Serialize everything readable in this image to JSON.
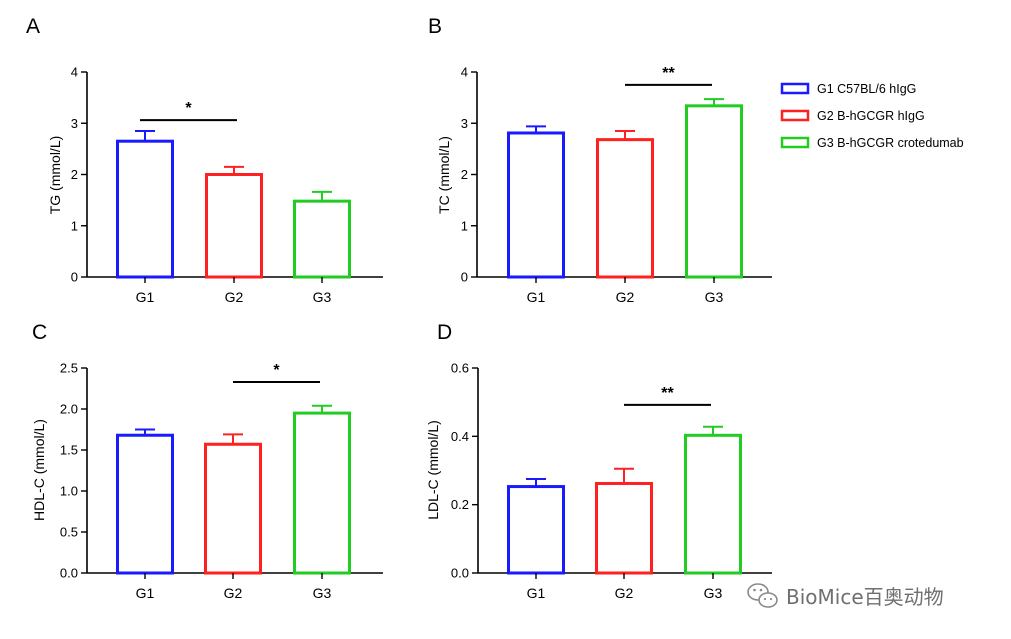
{
  "chart_data": [
    {
      "type": "bar",
      "panel": "A",
      "categories": [
        "G1",
        "G2",
        "G3"
      ],
      "values": [
        2.65,
        2.0,
        1.48
      ],
      "errors": [
        0.2,
        0.15,
        0.18
      ],
      "ylabel": "TG (mmol/L)",
      "ylim": [
        0,
        4
      ],
      "yticks": [
        "0",
        "1",
        "2",
        "3",
        "4"
      ],
      "significance": [
        {
          "from": 0,
          "to": 1,
          "label": "*",
          "at": 3.06
        }
      ]
    },
    {
      "type": "bar",
      "panel": "B",
      "categories": [
        "G1",
        "G2",
        "G3"
      ],
      "values": [
        2.81,
        2.68,
        3.34
      ],
      "errors": [
        0.13,
        0.17,
        0.13
      ],
      "ylabel": "TC (mmol/L)",
      "ylim": [
        0,
        4
      ],
      "yticks": [
        "0",
        "1",
        "2",
        "3",
        "4"
      ],
      "significance": [
        {
          "from": 1,
          "to": 2,
          "label": "**",
          "at": 3.75
        }
      ]
    },
    {
      "type": "bar",
      "panel": "C",
      "categories": [
        "G1",
        "G2",
        "G3"
      ],
      "values": [
        1.68,
        1.57,
        1.95
      ],
      "errors": [
        0.07,
        0.12,
        0.09
      ],
      "ylabel": "HDL-C (mmol/L)",
      "ylim": [
        0,
        2.5
      ],
      "yticks": [
        "0.0",
        "0.5",
        "1.0",
        "1.5",
        "2.0",
        "2.5"
      ],
      "significance": [
        {
          "from": 1,
          "to": 2,
          "label": "*",
          "at": 2.33
        }
      ]
    },
    {
      "type": "bar",
      "panel": "D",
      "categories": [
        "G1",
        "G2",
        "G3"
      ],
      "values": [
        0.253,
        0.262,
        0.403
      ],
      "errors": [
        0.022,
        0.043,
        0.025
      ],
      "ylabel": "LDL-C (mmol/L)",
      "ylim": [
        0,
        0.6
      ],
      "yticks": [
        "0.0",
        "0.2",
        "0.4",
        "0.6"
      ],
      "significance": [
        {
          "from": 1,
          "to": 2,
          "label": "**",
          "at": 0.492
        }
      ]
    }
  ],
  "legend": [
    {
      "label": "G1 C57BL/6 hIgG",
      "color": "#1a1aff"
    },
    {
      "label": "G2 B-hGCGR hIgG",
      "color": "#ff2020"
    },
    {
      "label": "G3 B-hGCGR crotedumab",
      "color": "#22cc22"
    }
  ],
  "series_colors": [
    "#1a1aff",
    "#ff2020",
    "#22cc22"
  ],
  "legend_placement": "top-right",
  "grid": false,
  "watermark": {
    "text": "BioMice百奥动物",
    "icon": "wechat-icon"
  }
}
